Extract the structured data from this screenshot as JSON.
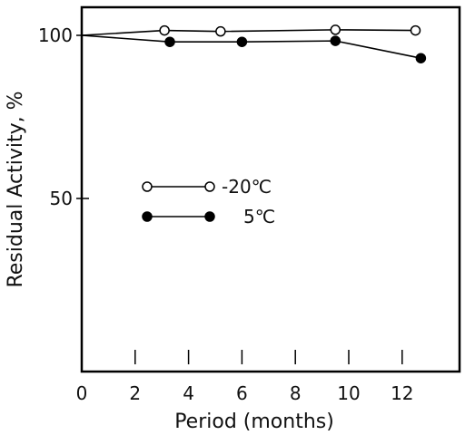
{
  "chart_data": {
    "type": "line",
    "xlabel": "Period (months)",
    "ylabel": "Residual Activity, %",
    "xlim": [
      0,
      14
    ],
    "ylim": [
      0,
      103
    ],
    "x_ticks": [
      0,
      2,
      4,
      6,
      8,
      10,
      12
    ],
    "y_ticks": [
      50,
      100
    ],
    "series": [
      {
        "name": "-20℃",
        "marker": "open-circle",
        "color": "#000000",
        "x": [
          0,
          3.1,
          5.2,
          9.5,
          12.5
        ],
        "y": [
          100,
          101.5,
          101.2,
          101.7,
          101.5
        ]
      },
      {
        "name": "5℃",
        "marker": "filled-circle",
        "color": "#000000",
        "x": [
          0,
          3.3,
          6.0,
          9.5,
          12.7
        ],
        "y": [
          100,
          98,
          98,
          98.3,
          93
        ]
      }
    ],
    "legend_position": "center-left",
    "grid": false
  }
}
